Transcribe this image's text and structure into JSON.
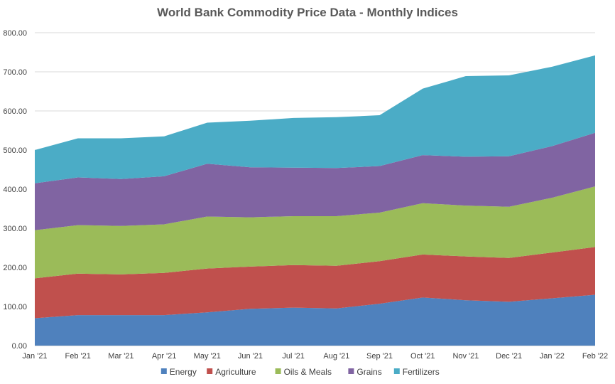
{
  "chart_data": {
    "type": "area",
    "stacked": true,
    "title": "World Bank Commodity Price Data - Monthly Indices",
    "xlabel": "",
    "ylabel": "",
    "categories": [
      "Jan '21",
      "Feb '21",
      "Mar '21",
      "Apr '21",
      "May '21",
      "Jun '21",
      "Jul '21",
      "Aug '21",
      "Sep '21",
      "Oct '21",
      "Nov '21",
      "Dec '21",
      "Jan '22",
      "Feb '22"
    ],
    "ylim": [
      0,
      800
    ],
    "yticks": [
      "0.00",
      "100.00",
      "200.00",
      "300.00",
      "400.00",
      "500.00",
      "600.00",
      "700.00",
      "800.00"
    ],
    "grid": true,
    "legend_position": "bottom",
    "series": [
      {
        "name": "Energy",
        "color": "#4f81bd",
        "values": [
          70,
          78,
          78,
          78,
          85,
          94,
          97,
          95,
          107,
          123,
          116,
          112,
          121,
          130
        ]
      },
      {
        "name": "Agriculture",
        "color": "#c0504d",
        "values": [
          102,
          106,
          104,
          108,
          112,
          108,
          109,
          109,
          109,
          110,
          112,
          112,
          117,
          122
        ]
      },
      {
        "name": "Oils & Meals",
        "color": "#9bbb59",
        "values": [
          123,
          124,
          124,
          124,
          133,
          126,
          125,
          127,
          124,
          131,
          130,
          131,
          140,
          155
        ]
      },
      {
        "name": "Grains",
        "color": "#8064a2",
        "values": [
          120,
          122,
          120,
          123,
          135,
          128,
          124,
          123,
          119,
          123,
          125,
          129,
          132,
          137
        ]
      },
      {
        "name": "Fertilizers",
        "color": "#4bacc6",
        "values": [
          85,
          100,
          104,
          102,
          105,
          119,
          127,
          130,
          130,
          170,
          206,
          207,
          203,
          198
        ]
      }
    ]
  }
}
